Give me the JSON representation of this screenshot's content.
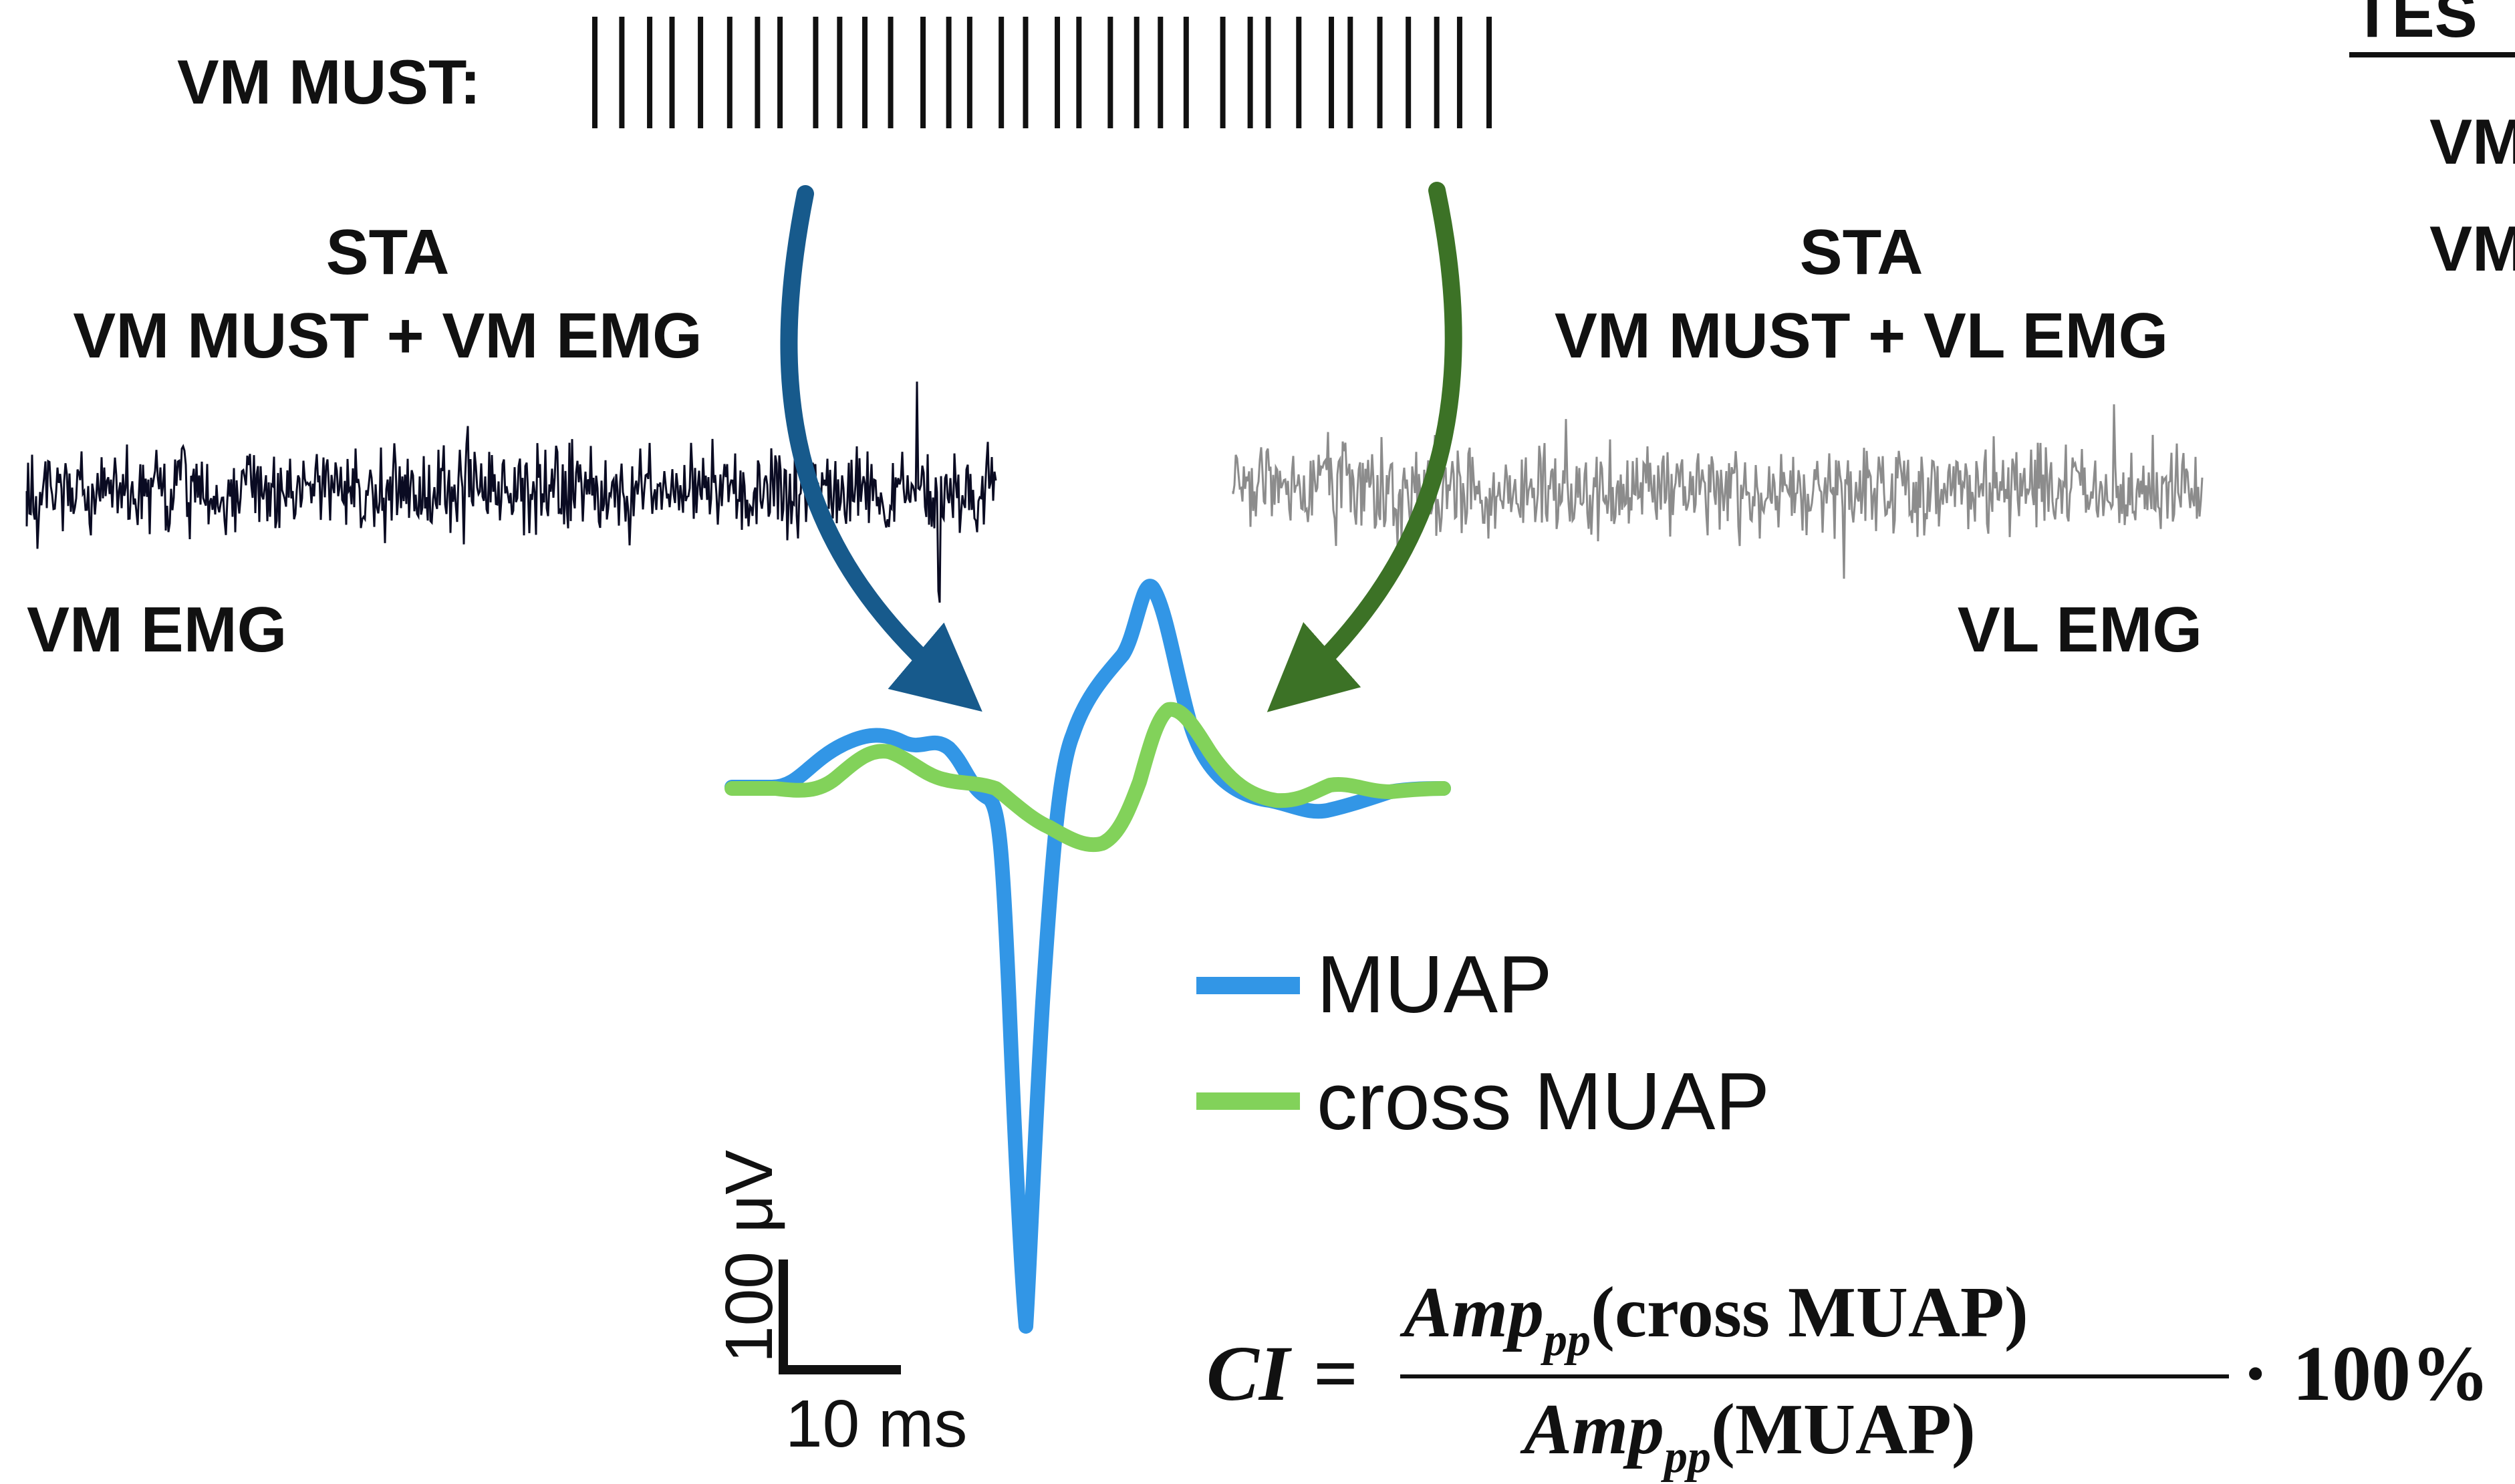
{
  "spike_train": {
    "label": "VM MUST:",
    "spike_count": 34
  },
  "sta_left": {
    "line1": "STA",
    "line2": "VM MUST + VM EMG",
    "emg_label": "VM EMG"
  },
  "sta_right": {
    "line1": "STA",
    "line2": "VM MUST + VL EMG",
    "emg_label": "VL EMG"
  },
  "legend": {
    "muap": "MUAP",
    "cross_muap": "cross MUAP"
  },
  "scale_bar": {
    "vertical": "100 μV",
    "horizontal": "10 ms"
  },
  "formula": {
    "lhs": "CI",
    "equals": "=",
    "amp": "Amp",
    "sub": "pp",
    "num_arg": "(cross MUAP)",
    "den_arg": "(MUAP)",
    "times": "·",
    "factor": "100%"
  },
  "cropped_right": {
    "heading": "TES",
    "row1": "VM",
    "row2": "VM"
  },
  "colors": {
    "vm_emg": "#0a0b22",
    "vl_emg": "#8c8c8c",
    "muap": "#3296e6",
    "cross_muap": "#82d25a",
    "arrow_left": "#175a8c",
    "arrow_right": "#3c7226"
  }
}
